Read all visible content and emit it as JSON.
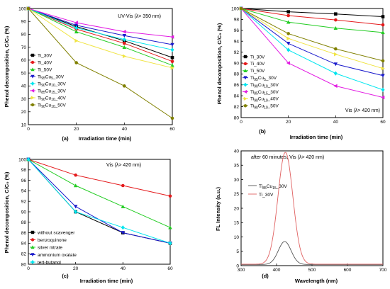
{
  "chart_data": [
    {
      "panel": "(a)",
      "type": "line",
      "annotation": "UV-Vis (λ> 350 nm)",
      "xlabel": "Irradiation time (min)",
      "ylabel": "Phenol decomposition, C/C₀ (%)",
      "xlim": [
        0,
        60
      ],
      "ylim": [
        10,
        100
      ],
      "xticks": [
        0,
        20,
        40,
        60
      ],
      "yticks": [
        10,
        20,
        30,
        40,
        50,
        60,
        70,
        80,
        90,
        100
      ],
      "grid": false,
      "legend": "bottom-left",
      "x": [
        0,
        20,
        40,
        60
      ],
      "series": [
        {
          "name": "Ti_30V",
          "color": "#000000",
          "marker": "square",
          "values": [
            100,
            86,
            75,
            62
          ]
        },
        {
          "name": "Ti_40V",
          "color": "#e41a1c",
          "marker": "circle",
          "values": [
            100,
            84,
            73,
            59
          ]
        },
        {
          "name": "Ti_50V",
          "color": "#22cc22",
          "marker": "triangle-up",
          "values": [
            100,
            82,
            70,
            56
          ]
        },
        {
          "name": "Ti95Cu5_30V",
          "color": "#1a1acc",
          "marker": "triangle-down",
          "values": [
            100,
            87,
            79,
            72
          ]
        },
        {
          "name": "Ti90Cu10_30V",
          "color": "#00e5ee",
          "marker": "diamond",
          "values": [
            100,
            85,
            76,
            68
          ]
        },
        {
          "name": "Ti85Cu15_30V",
          "color": "#e21ce2",
          "marker": "triangle-left",
          "values": [
            100,
            89,
            82,
            78
          ]
        },
        {
          "name": "Ti90Cu10_40V",
          "color": "#f0e442",
          "marker": "triangle-right",
          "values": [
            100,
            75,
            63,
            54
          ]
        },
        {
          "name": "Ti90Cu10_50V",
          "color": "#808000",
          "marker": "circle",
          "values": [
            100,
            58,
            40,
            15
          ]
        }
      ]
    },
    {
      "panel": "(b)",
      "type": "line",
      "annotation": "Vis (λ> 420 nm)",
      "xlabel": "Irradiation time (min)",
      "ylabel": "Phenol decomposition, C/C₀ (%)",
      "xlim": [
        0,
        60
      ],
      "ylim": [
        80,
        100
      ],
      "xticks": [
        0,
        20,
        40,
        60
      ],
      "yticks": [
        80,
        82,
        84,
        86,
        88,
        90,
        92,
        94,
        96,
        98,
        100
      ],
      "grid": false,
      "legend": "left",
      "x": [
        0,
        20,
        40,
        60
      ],
      "series": [
        {
          "name": "Ti_30V",
          "color": "#000000",
          "marker": "square",
          "values": [
            100,
            99.4,
            99.0,
            98.5
          ]
        },
        {
          "name": "Ti_40V",
          "color": "#e41a1c",
          "marker": "circle",
          "values": [
            100,
            98.7,
            97.9,
            97.0
          ]
        },
        {
          "name": "Ti_50V",
          "color": "#22cc22",
          "marker": "triangle-up",
          "values": [
            100,
            97.5,
            96.4,
            95.6
          ]
        },
        {
          "name": "Ti95Cu5_30V",
          "color": "#1a1acc",
          "marker": "triangle-down",
          "values": [
            100,
            93.6,
            89.8,
            87.7
          ]
        },
        {
          "name": "Ti90Cu10_30V",
          "color": "#00e5ee",
          "marker": "diamond",
          "values": [
            100,
            92.4,
            88.1,
            85.1
          ]
        },
        {
          "name": "Ti85Cu15_30V",
          "color": "#e21ce2",
          "marker": "triangle-left",
          "values": [
            100,
            90.0,
            85.8,
            83.7
          ]
        },
        {
          "name": "Ti90Cu10_40V",
          "color": "#f0e442",
          "marker": "triangle-right",
          "values": [
            100,
            94.5,
            91.6,
            89.0
          ]
        },
        {
          "name": "Ti90Cu10_50V",
          "color": "#808000",
          "marker": "circle",
          "values": [
            100,
            95.4,
            92.6,
            90.4
          ]
        }
      ]
    },
    {
      "panel": "(c)",
      "type": "line",
      "annotation": "Vis (λ> 420 nm)",
      "xlabel": "Irradiation time (min)",
      "ylabel": "Phenol decomposition, C/C₀ (%)",
      "xlim": [
        0,
        60
      ],
      "ylim": [
        80,
        100
      ],
      "xticks": [
        0,
        20,
        40,
        60
      ],
      "yticks": [
        80,
        82,
        84,
        86,
        88,
        90,
        92,
        94,
        96,
        98,
        100
      ],
      "grid": false,
      "legend": "bottom-left",
      "x": [
        0,
        20,
        40,
        60
      ],
      "series": [
        {
          "name": "without scavenger",
          "color": "#000000",
          "marker": "square",
          "values": [
            100,
            90,
            86,
            84
          ]
        },
        {
          "name": "benzoquinone",
          "color": "#e41a1c",
          "marker": "circle",
          "values": [
            100,
            97,
            95,
            93
          ]
        },
        {
          "name": "silver nitrate",
          "color": "#22cc22",
          "marker": "triangle-up",
          "values": [
            100,
            95,
            91,
            87
          ]
        },
        {
          "name": "ammonium oxalate",
          "color": "#1a1acc",
          "marker": "triangle-down",
          "values": [
            100,
            91,
            86,
            84
          ]
        },
        {
          "name": "tert-butanol",
          "color": "#00e5ee",
          "marker": "diamond",
          "values": [
            100,
            90,
            87,
            84
          ]
        }
      ]
    },
    {
      "panel": "(d)",
      "type": "line",
      "annotation": "after 60 minutes, Vis (λ> 420 nm)",
      "xlabel": "Wavelength (nm)",
      "ylabel": "FL Intensity (a.u.)",
      "xlim": [
        300,
        700
      ],
      "ylim": [
        0,
        40
      ],
      "xticks": [
        300,
        400,
        500,
        600,
        700
      ],
      "yticks": [
        0,
        5,
        10,
        15,
        20,
        25,
        30,
        35,
        40
      ],
      "grid": false,
      "legend": "right",
      "series": [
        {
          "name": "Ti85Cu15_30V",
          "color": "#555555",
          "peak_x": 423,
          "peak_y": 8,
          "sigma": 18,
          "baseline": 0.4
        },
        {
          "name": "Ti_30V",
          "color": "#e06060",
          "peak_x": 425,
          "peak_y": 39,
          "sigma": 21,
          "baseline": 0.5
        }
      ]
    }
  ]
}
